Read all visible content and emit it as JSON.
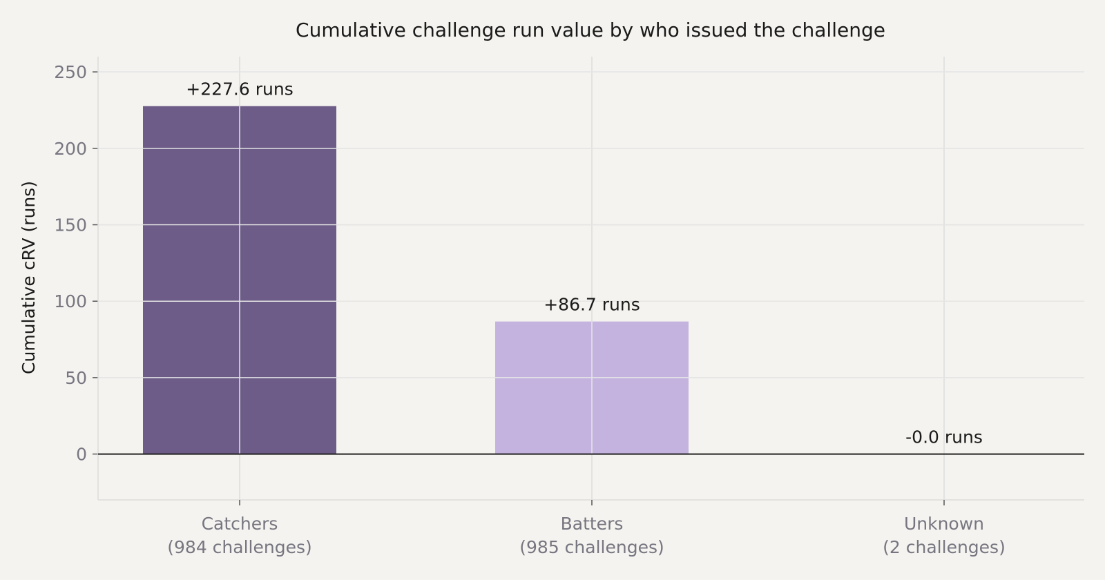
{
  "chart_data": {
    "type": "bar",
    "title": "Cumulative challenge run value by who issued the challenge",
    "xlabel": "",
    "ylabel": "Cumulative cRV (runs)",
    "categories": [
      [
        "Catchers",
        "(984 challenges)"
      ],
      [
        "Batters",
        "(985 challenges)"
      ],
      [
        "Unknown",
        "(2 challenges)"
      ]
    ],
    "values": [
      227.6,
      86.7,
      -0.0
    ],
    "data_labels": [
      "+227.6 runs",
      "+86.7 runs",
      "-0.0 runs"
    ],
    "colors": [
      "#6c5c87",
      "#c4b3df",
      "#d9d0ea"
    ],
    "ylim": [
      -30,
      260
    ],
    "yticks": [
      0,
      50,
      100,
      150,
      200,
      250
    ],
    "grid": true,
    "legend": "none"
  }
}
